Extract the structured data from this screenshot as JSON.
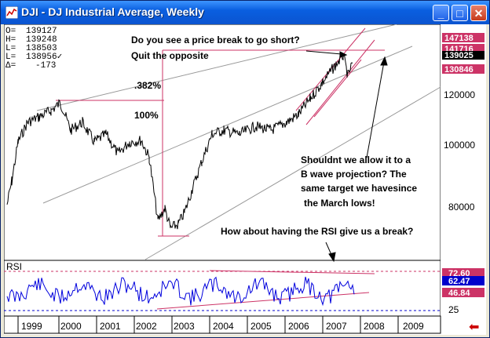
{
  "window": {
    "title": "DJI - DJ Industrial Average, Weekly",
    "buttons": {
      "minimize": "_",
      "maximize": "□",
      "close": "✕"
    }
  },
  "stats": [
    {
      "label": "O=",
      "value": "139127"
    },
    {
      "label": "H=",
      "value": "139248"
    },
    {
      "label": "L=",
      "value": "138503"
    },
    {
      "label": "L=",
      "value": "138956✓"
    },
    {
      "label": "Δ=",
      "value": "-173"
    }
  ],
  "annotations": {
    "line1": "Do you see a price break to go short?",
    "line2": "Quit the opposite",
    "fib382": ".382%",
    "fib100": "100%",
    "right1": "Shouldnt we allow it to a",
    "right2": "B wave projection? The",
    "right3": "same target we havesince",
    "right4": "the March lows!",
    "rsi_question": "How about having the RSI give us a break?"
  },
  "price_axis": {
    "labels": [
      "120000",
      "100000",
      "80000"
    ],
    "tags": [
      {
        "text": "147138",
        "color": "#cc3366"
      },
      {
        "text": "141716",
        "color": "#cc3366"
      },
      {
        "text": "139025",
        "color": "#000000"
      },
      {
        "text": "130846",
        "color": "#cc3366"
      }
    ]
  },
  "rsi": {
    "label": "RSI",
    "tags": [
      {
        "text": "72.60",
        "color": "#cc3366"
      },
      {
        "text": "62.47",
        "color": "#0000cc"
      },
      {
        "text": "46.84",
        "color": "#cc3366"
      }
    ],
    "axis_label": "25"
  },
  "time_axis": {
    "years": [
      "1999",
      "2000",
      "2001",
      "2002",
      "2003",
      "2004",
      "2005",
      "2006",
      "2007",
      "2008",
      "2009"
    ]
  },
  "nav": {
    "arrow": "⬅"
  },
  "colors": {
    "channel": "#cc3366",
    "price": "#000000",
    "rsi": "#0000dd",
    "guides": "#999999"
  }
}
